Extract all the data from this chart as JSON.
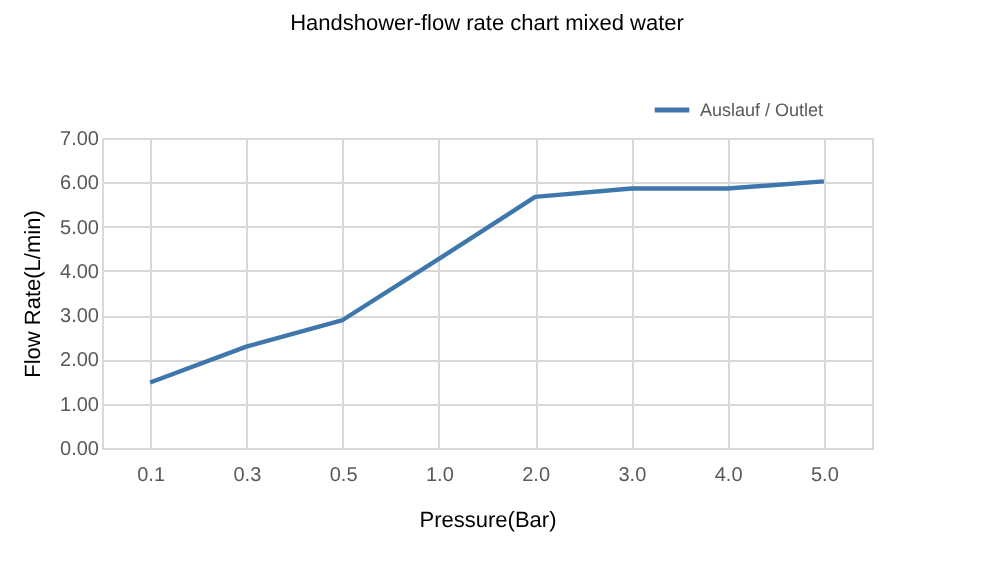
{
  "chart_data": {
    "type": "line",
    "title": "Handshower-flow rate chart mixed water",
    "xlabel": "Pressure(Bar)",
    "ylabel": "Flow Rate(L/min)",
    "categories": [
      "0.1",
      "0.3",
      "0.5",
      "1.0",
      "2.0",
      "3.0",
      "4.0",
      "5.0"
    ],
    "series": [
      {
        "name": "Auslauf / Outlet",
        "color": "#3f77ad",
        "values": [
          1.48,
          2.29,
          2.89,
          4.27,
          5.67,
          5.86,
          5.86,
          6.02
        ]
      }
    ],
    "ylim": [
      0,
      7
    ],
    "yticks": [
      {
        "value": 0,
        "label": "0.00"
      },
      {
        "value": 1,
        "label": "1.00"
      },
      {
        "value": 2,
        "label": "2.00"
      },
      {
        "value": 3,
        "label": "3.00"
      },
      {
        "value": 4,
        "label": "4.00"
      },
      {
        "value": 5,
        "label": "5.00"
      },
      {
        "value": 6,
        "label": "6.00"
      },
      {
        "value": 7,
        "label": "7.00"
      }
    ],
    "grid": true,
    "legend": "top right",
    "marker": "none",
    "line_style": "solid"
  }
}
